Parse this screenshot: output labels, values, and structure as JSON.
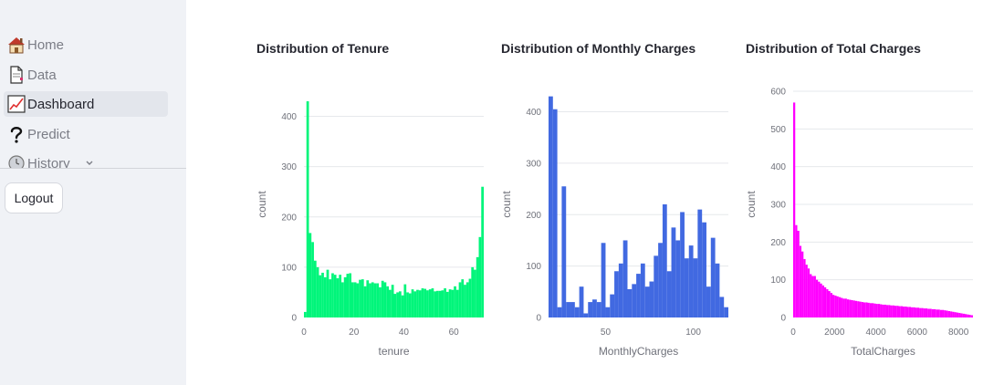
{
  "sidebar": {
    "items": [
      {
        "label": "Home",
        "icon": "house-icon",
        "active": false
      },
      {
        "label": "Data",
        "icon": "page-icon",
        "active": false
      },
      {
        "label": "Dashboard",
        "icon": "chart-increasing-icon",
        "active": true
      },
      {
        "label": "Predict",
        "icon": "question-mark-icon",
        "active": false
      },
      {
        "label": "History",
        "icon": "clock-icon",
        "active": false
      }
    ],
    "logout_label": "Logout"
  },
  "chart_data": [
    {
      "type": "bar",
      "title": "Distribution of Tenure",
      "xlabel": "tenure",
      "ylabel": "count",
      "color": "#00f57a",
      "xlim": [
        0,
        72
      ],
      "ylim": [
        0,
        450
      ],
      "xticks": [
        0,
        20,
        40,
        60
      ],
      "yticks": [
        0,
        100,
        200,
        300,
        400
      ],
      "bin_width": 1,
      "x_start": 0,
      "values": [
        11,
        430,
        168,
        150,
        113,
        100,
        84,
        89,
        80,
        95,
        76,
        88,
        85,
        78,
        85,
        70,
        80,
        87,
        88,
        70,
        70,
        68,
        75,
        76,
        62,
        74,
        68,
        70,
        68,
        68,
        60,
        73,
        70,
        62,
        55,
        65,
        47,
        50,
        52,
        44,
        66,
        50,
        48,
        56,
        52,
        55,
        54,
        58,
        57,
        54,
        56,
        58,
        52,
        53,
        53,
        54,
        58,
        51,
        56,
        55,
        62,
        55,
        70,
        76,
        65,
        70,
        77,
        100,
        95,
        120,
        160,
        260
      ]
    },
    {
      "type": "bar",
      "title": "Distribution of Monthly Charges",
      "xlabel": "MonthlyCharges",
      "ylabel": "count",
      "color": "#4169e1",
      "xlim": [
        17.5,
        120
      ],
      "ylim": [
        0,
        440
      ],
      "xticks": [
        50,
        100
      ],
      "yticks": [
        0,
        100,
        200,
        300,
        400
      ],
      "bin_width": 2.5,
      "x_start": 17.5,
      "values": [
        430,
        405,
        20,
        255,
        30,
        30,
        20,
        60,
        8,
        30,
        35,
        30,
        145,
        20,
        45,
        90,
        105,
        150,
        55,
        65,
        85,
        105,
        60,
        70,
        120,
        145,
        220,
        90,
        175,
        150,
        205,
        115,
        140,
        115,
        210,
        185,
        60,
        155,
        105,
        40,
        20
      ]
    },
    {
      "type": "bar",
      "title": "Distribution of Total Charges",
      "xlabel": "TotalCharges",
      "ylabel": "count",
      "color": "#ff00ff",
      "xlim": [
        0,
        8700
      ],
      "ylim": [
        0,
        600
      ],
      "xticks": [
        0,
        2000,
        4000,
        6000,
        8000
      ],
      "yticks": [
        0,
        100,
        200,
        300,
        400,
        500,
        600
      ],
      "bin_width": 100,
      "x_start": 0,
      "values": [
        570,
        245,
        230,
        190,
        175,
        155,
        140,
        130,
        115,
        110,
        110,
        100,
        95,
        90,
        85,
        80,
        75,
        70,
        65,
        60,
        58,
        56,
        54,
        52,
        50,
        50,
        48,
        47,
        46,
        45,
        44,
        43,
        42,
        41,
        40,
        40,
        39,
        38,
        38,
        37,
        36,
        36,
        35,
        34,
        34,
        33,
        33,
        32,
        32,
        31,
        31,
        30,
        30,
        29,
        29,
        28,
        28,
        27,
        27,
        26,
        26,
        25,
        25,
        24,
        24,
        23,
        23,
        22,
        22,
        21,
        21,
        20,
        20,
        19,
        18,
        17,
        16,
        15,
        14,
        13,
        12,
        11,
        10,
        9,
        8,
        7,
        6
      ]
    }
  ]
}
